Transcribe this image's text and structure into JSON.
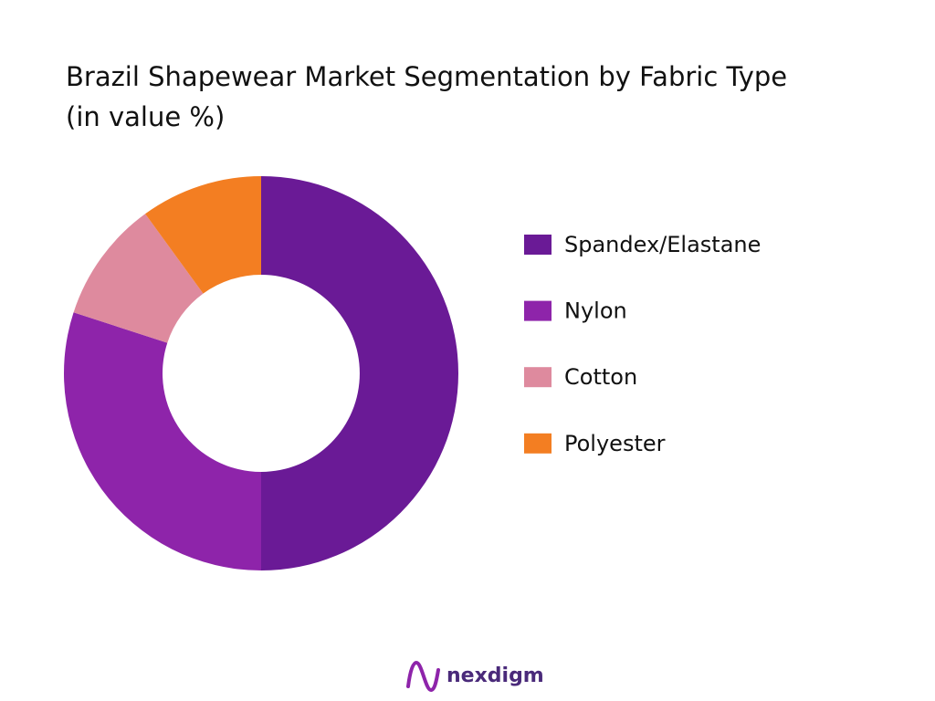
{
  "chart_data": {
    "type": "donut",
    "title": "Brazil Shapewear Market Segmentation by Fabric Type",
    "subtitle": "(in value %)",
    "categories": [
      "Spandex/Elastane",
      "Nylon",
      "Cotton",
      "Polyester"
    ],
    "values": [
      50,
      30,
      10,
      10
    ],
    "colors": [
      "#6a1a96",
      "#8e24aa",
      "#de8a9e",
      "#f37e22"
    ],
    "legend": "right"
  },
  "brand": "nexdigm"
}
